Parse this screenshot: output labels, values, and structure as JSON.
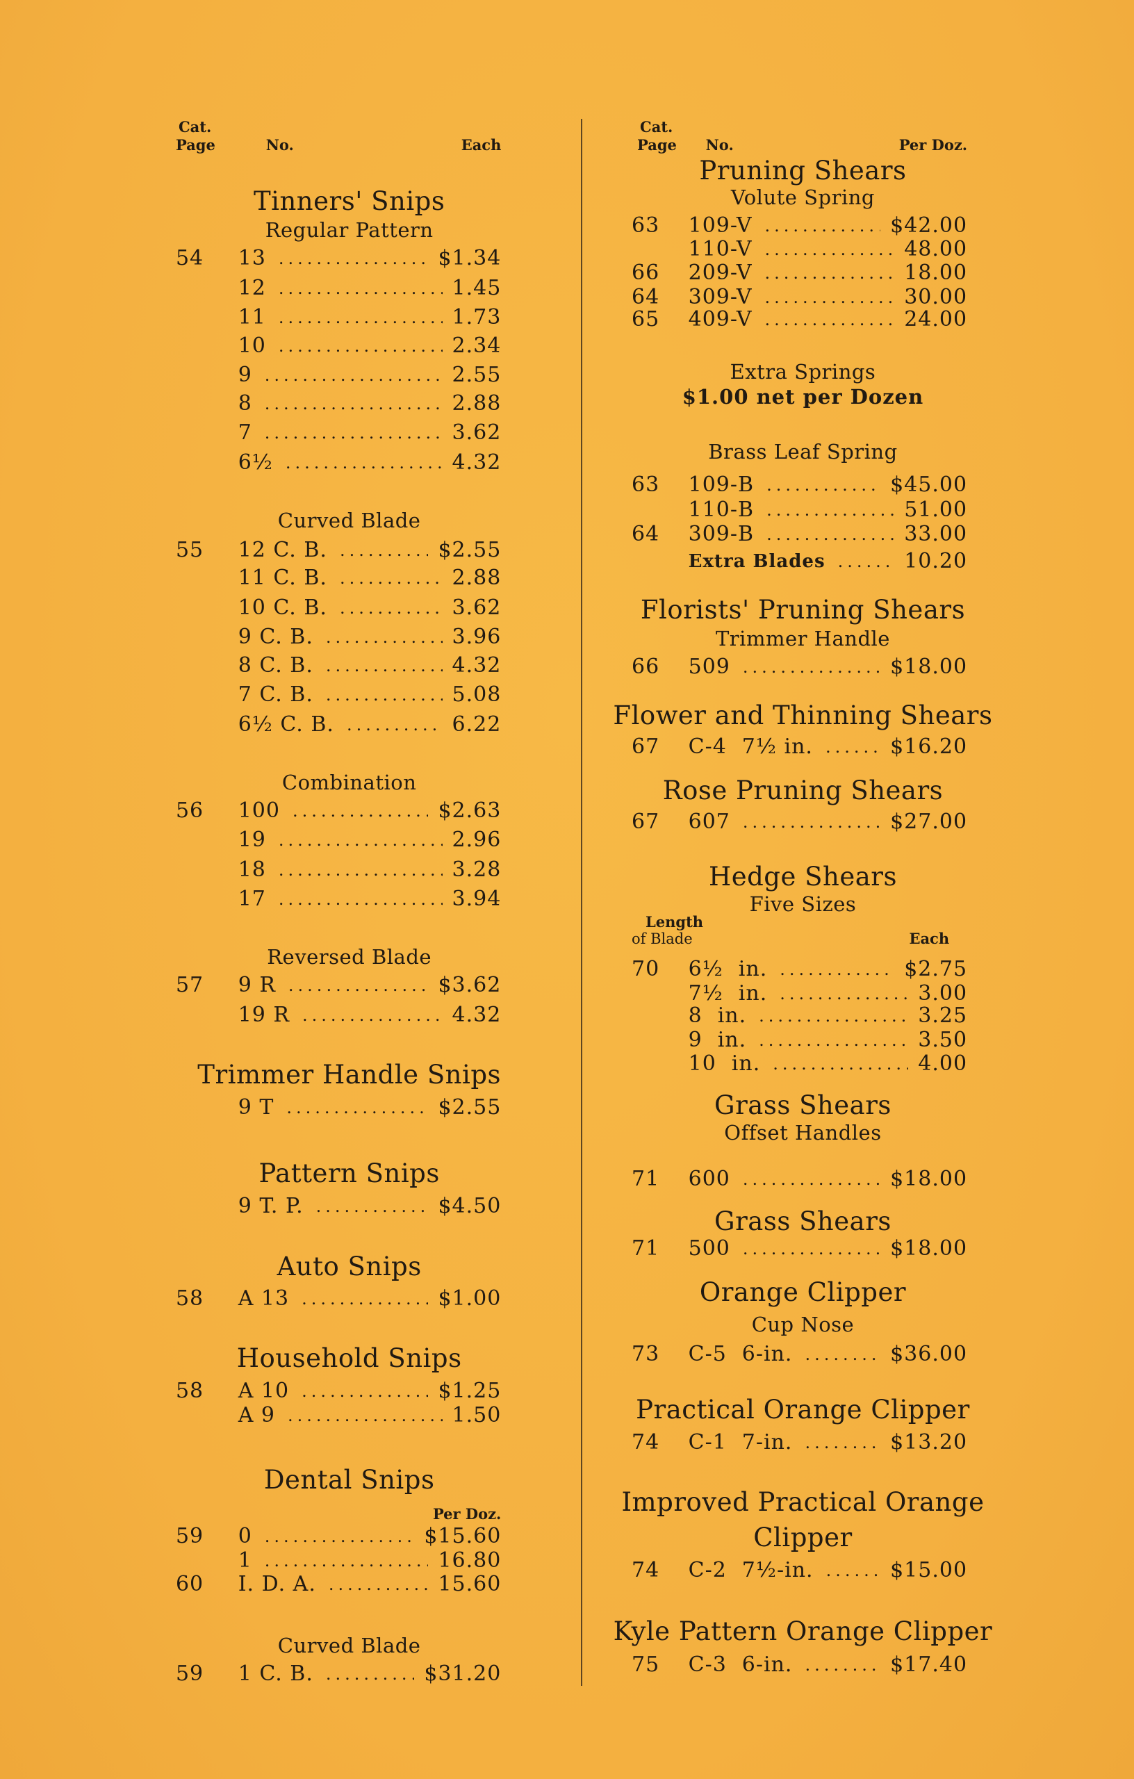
{
  "colors": {
    "paper": "#f5b443",
    "ink": "#211a12"
  },
  "columns": [
    {
      "header": {
        "cat_label": "Cat.",
        "page_label": "Page",
        "no_label": "No.",
        "price_label": "Each"
      },
      "lines": [
        {
          "kind": "title",
          "text": "Tinners' Snips"
        },
        {
          "kind": "sub",
          "text": "Regular Pattern"
        },
        {
          "kind": "row",
          "page": "54",
          "no": "13",
          "price": "$1.34"
        },
        {
          "kind": "row",
          "page": "",
          "no": "12",
          "price": "1.45"
        },
        {
          "kind": "row",
          "page": "",
          "no": "11",
          "price": "1.73"
        },
        {
          "kind": "row",
          "page": "",
          "no": "10",
          "price": "2.34"
        },
        {
          "kind": "row",
          "page": "",
          "no": "9",
          "price": "2.55"
        },
        {
          "kind": "row",
          "page": "",
          "no": "8",
          "price": "2.88"
        },
        {
          "kind": "row",
          "page": "",
          "no": "7",
          "price": "3.62"
        },
        {
          "kind": "row",
          "page": "",
          "no": "6½",
          "price": "4.32"
        },
        {
          "kind": "sub",
          "text": "Curved Blade"
        },
        {
          "kind": "row",
          "page": "55",
          "no": "12 C. B.",
          "price": "$2.55"
        },
        {
          "kind": "row",
          "page": "",
          "no": "11 C. B.",
          "price": "2.88"
        },
        {
          "kind": "row",
          "page": "",
          "no": "10 C. B.",
          "price": "3.62"
        },
        {
          "kind": "row",
          "page": "",
          "no": "9 C. B.",
          "price": "3.96"
        },
        {
          "kind": "row",
          "page": "",
          "no": "8 C. B.",
          "price": "4.32"
        },
        {
          "kind": "row",
          "page": "",
          "no": "7 C. B.",
          "price": "5.08"
        },
        {
          "kind": "row",
          "page": "",
          "no": "6½ C. B.",
          "price": "6.22"
        },
        {
          "kind": "sub",
          "text": "Combination"
        },
        {
          "kind": "row",
          "page": "56",
          "no": "100",
          "price": "$2.63"
        },
        {
          "kind": "row",
          "page": "",
          "no": "19",
          "price": "2.96"
        },
        {
          "kind": "row",
          "page": "",
          "no": "18",
          "price": "3.28"
        },
        {
          "kind": "row",
          "page": "",
          "no": "17",
          "price": "3.94"
        },
        {
          "kind": "sub",
          "text": "Reversed Blade"
        },
        {
          "kind": "row",
          "page": "57",
          "no": "9 R",
          "price": "$3.62"
        },
        {
          "kind": "row",
          "page": "",
          "no": "19 R",
          "price": "4.32"
        },
        {
          "kind": "title",
          "text": "Trimmer Handle Snips"
        },
        {
          "kind": "row",
          "page": "",
          "no": "9 T",
          "price": "$2.55"
        },
        {
          "kind": "title",
          "text": "Pattern Snips"
        },
        {
          "kind": "row",
          "page": "",
          "no": "9 T. P.",
          "price": "$4.50"
        },
        {
          "kind": "title",
          "text": "Auto Snips"
        },
        {
          "kind": "row",
          "page": "58",
          "no": "A 13",
          "price": "$1.00"
        },
        {
          "kind": "title",
          "text": "Household Snips"
        },
        {
          "kind": "row",
          "page": "58",
          "no": "A 10",
          "price": "$1.25"
        },
        {
          "kind": "row",
          "page": "",
          "no": "A 9",
          "price": "1.50"
        },
        {
          "kind": "title",
          "text": "Dental Snips"
        },
        {
          "kind": "pricehead",
          "text": "Per Doz."
        },
        {
          "kind": "row",
          "page": "59",
          "no": "0",
          "price": "$15.60"
        },
        {
          "kind": "row",
          "page": "",
          "no": "1",
          "price": "16.80"
        },
        {
          "kind": "row",
          "page": "60",
          "no": "I. D. A.",
          "price": "15.60"
        },
        {
          "kind": "sub",
          "text": "Curved Blade"
        },
        {
          "kind": "row",
          "page": "59",
          "no": "1 C. B.",
          "price": "$31.20"
        }
      ]
    },
    {
      "header": {
        "cat_label": "Cat.",
        "page_label": "Page",
        "no_label": "No.",
        "price_label": "Per Doz."
      },
      "lines": [
        {
          "kind": "title",
          "text": "Pruning Shears"
        },
        {
          "kind": "sub",
          "text": "Volute Spring"
        },
        {
          "kind": "row",
          "page": "63",
          "no": "109-V",
          "price": "$42.00"
        },
        {
          "kind": "row",
          "page": "",
          "no": "110-V",
          "price": "48.00"
        },
        {
          "kind": "row",
          "page": "66",
          "no": "209-V",
          "price": "18.00"
        },
        {
          "kind": "row",
          "page": "64",
          "no": "309-V",
          "price": "30.00"
        },
        {
          "kind": "row",
          "page": "65",
          "no": "409-V",
          "price": "24.00"
        },
        {
          "kind": "sub",
          "text": "Extra Springs"
        },
        {
          "kind": "note",
          "text": "$1.00 net per Dozen"
        },
        {
          "kind": "sub",
          "text": "Brass Leaf Spring"
        },
        {
          "kind": "row",
          "page": "63",
          "no": "109-B",
          "price": "$45.00"
        },
        {
          "kind": "row",
          "page": "",
          "no": "110-B",
          "price": "51.00"
        },
        {
          "kind": "row",
          "page": "64",
          "no": "309-B",
          "price": "33.00"
        },
        {
          "kind": "row",
          "page": "",
          "no": "Extra Blades",
          "price": "10.20"
        },
        {
          "kind": "title",
          "text": "Florists' Pruning Shears"
        },
        {
          "kind": "sub",
          "text": "Trimmer Handle"
        },
        {
          "kind": "row",
          "page": "66",
          "no": "509",
          "price": "$18.00"
        },
        {
          "kind": "title",
          "text": "Flower and Thinning Shears"
        },
        {
          "kind": "row",
          "page": "67",
          "no": "C-4",
          "spec": "7½ in.",
          "price": "$16.20"
        },
        {
          "kind": "title",
          "text": "Rose Pruning Shears"
        },
        {
          "kind": "row",
          "page": "67",
          "no": "607",
          "price": "$27.00"
        },
        {
          "kind": "title",
          "text": "Hedge Shears"
        },
        {
          "kind": "sub",
          "text": "Five Sizes"
        },
        {
          "kind": "subhead",
          "left1": "Length",
          "left2": "of Blade",
          "right": "Each"
        },
        {
          "kind": "row",
          "page": "70",
          "no": "6½",
          "spec": "in.",
          "price": "$2.75"
        },
        {
          "kind": "row",
          "page": "",
          "no": "7½",
          "spec": "in.",
          "price": "3.00"
        },
        {
          "kind": "row",
          "page": "",
          "no": "8",
          "spec": "in.",
          "price": "3.25"
        },
        {
          "kind": "row",
          "page": "",
          "no": "9",
          "spec": "in.",
          "price": "3.50"
        },
        {
          "kind": "row",
          "page": "",
          "no": "10",
          "spec": "in.",
          "price": "4.00"
        },
        {
          "kind": "title",
          "text": "Grass Shears"
        },
        {
          "kind": "sub",
          "text": "Offset Handles"
        },
        {
          "kind": "row",
          "page": "71",
          "no": "600",
          "price": "$18.00"
        },
        {
          "kind": "title",
          "text": "Grass Shears"
        },
        {
          "kind": "row",
          "page": "71",
          "no": "500",
          "price": "$18.00"
        },
        {
          "kind": "title",
          "text": "Orange Clipper"
        },
        {
          "kind": "sub",
          "text": "Cup Nose"
        },
        {
          "kind": "row",
          "page": "73",
          "no": "C-5",
          "spec": "6-in.",
          "price": "$36.00"
        },
        {
          "kind": "title",
          "text": "Practical Orange Clipper"
        },
        {
          "kind": "row",
          "page": "74",
          "no": "C-1",
          "spec": "7-in.",
          "price": "$13.20"
        },
        {
          "kind": "title",
          "text": "Improved Practical Orange"
        },
        {
          "kind": "title",
          "text": "Clipper"
        },
        {
          "kind": "row",
          "page": "74",
          "no": "C-2",
          "spec": "7½-in.",
          "price": "$15.00"
        },
        {
          "kind": "title",
          "text": "Kyle Pattern Orange Clipper"
        },
        {
          "kind": "row",
          "page": "75",
          "no": "C-3",
          "spec": "6-in.",
          "price": "$17.40"
        }
      ]
    }
  ]
}
